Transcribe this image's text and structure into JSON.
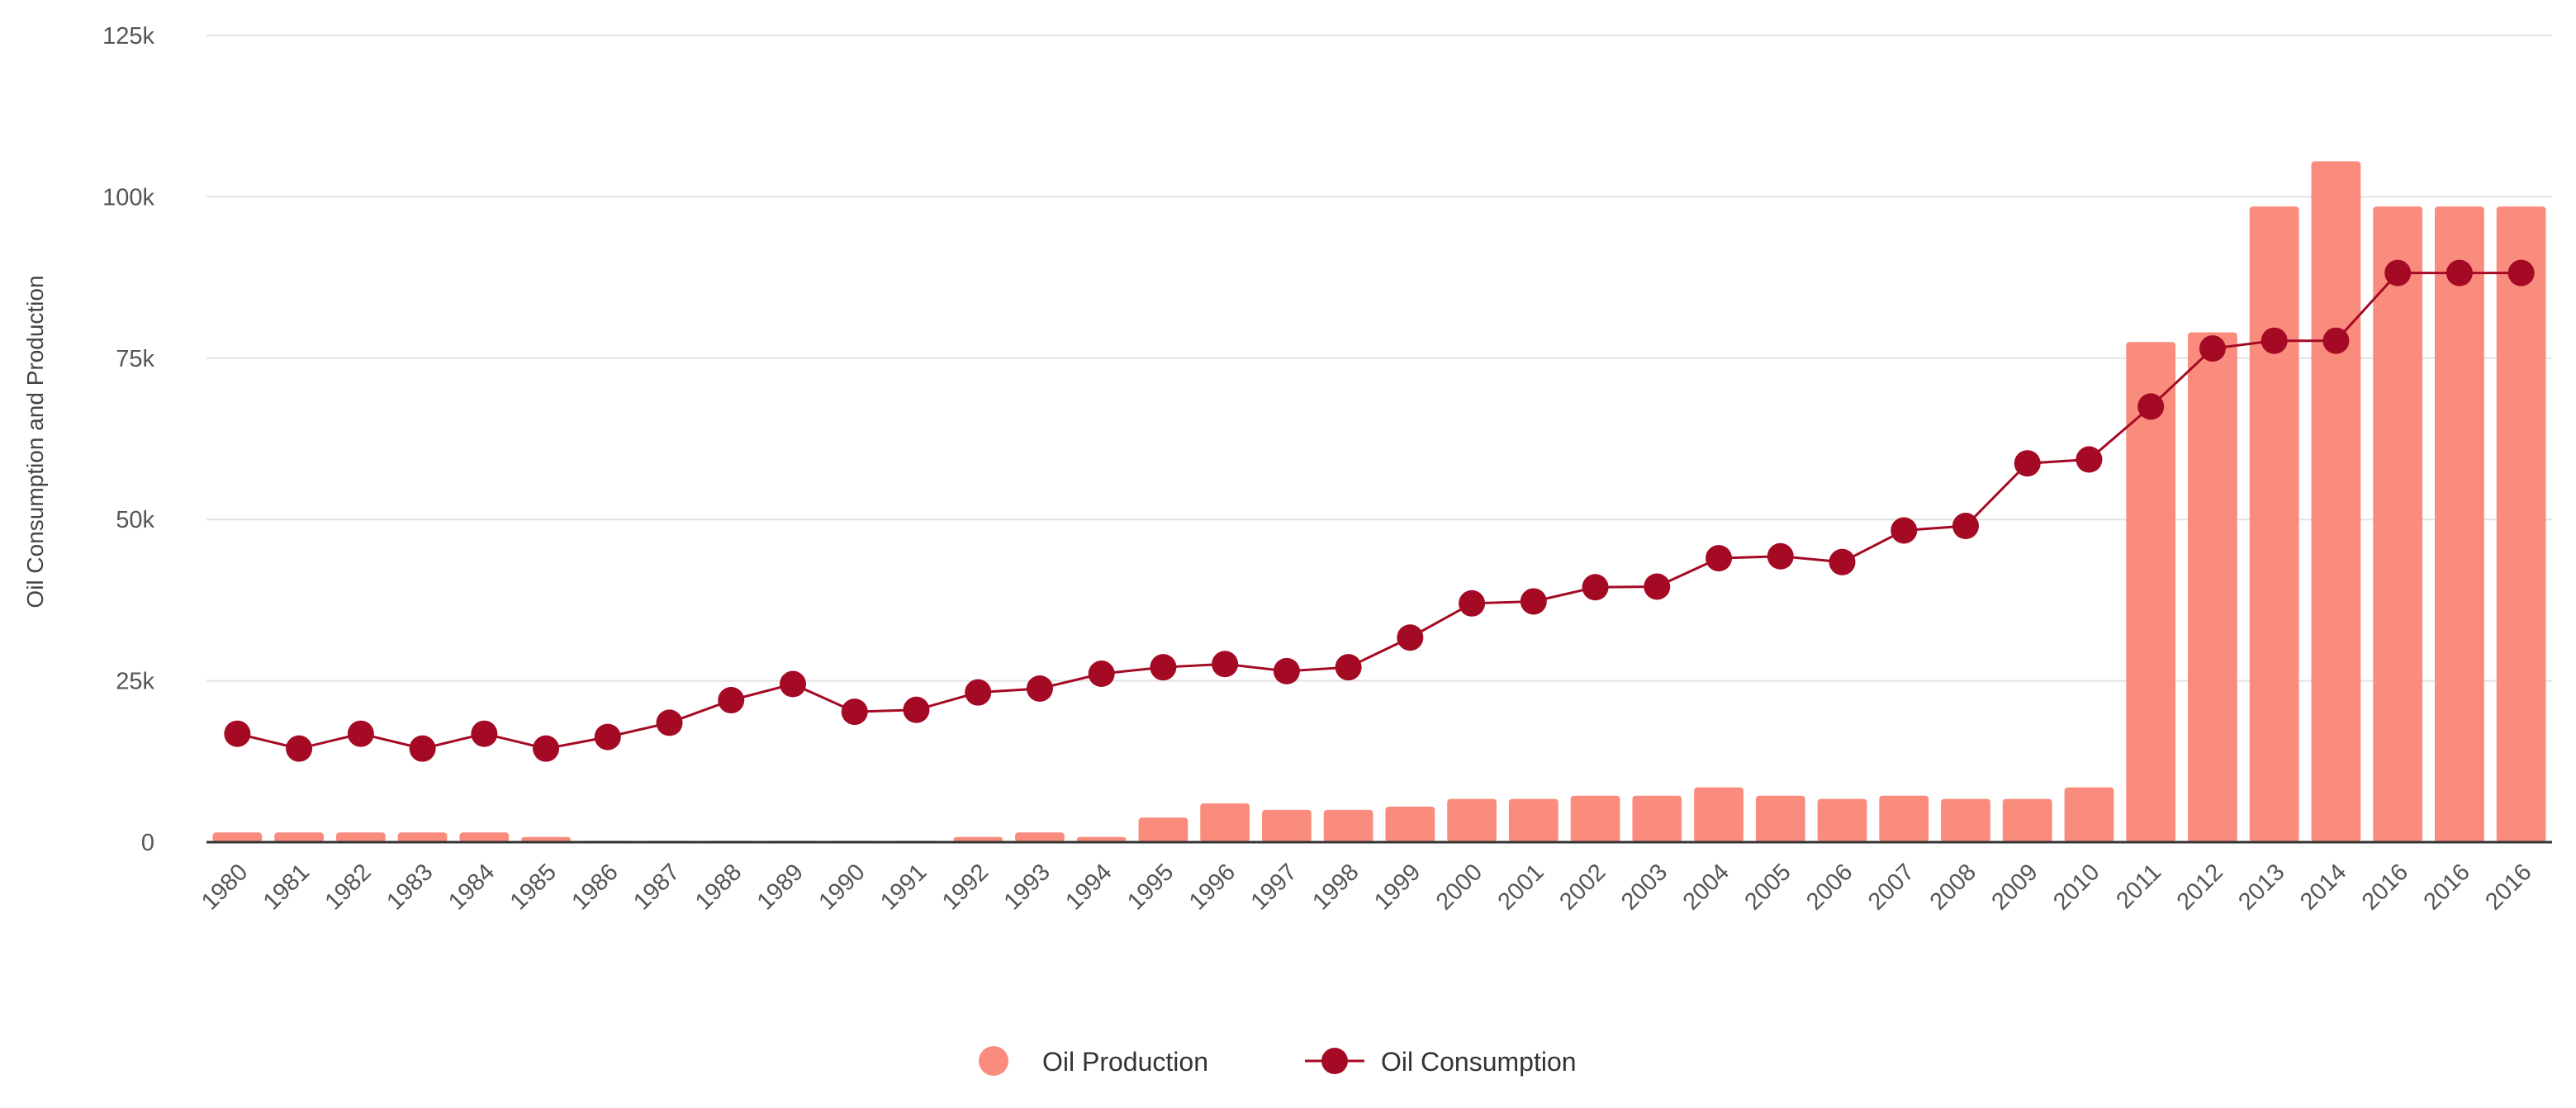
{
  "chart_data": {
    "type": "bar+line",
    "title": "",
    "xlabel": "",
    "ylabel": "Oil Consumption and Production",
    "ylim": [
      0,
      125000
    ],
    "yticks": [
      {
        "value": 0,
        "label": "0"
      },
      {
        "value": 25000,
        "label": "25k"
      },
      {
        "value": 50000,
        "label": "50k"
      },
      {
        "value": 75000,
        "label": "75k"
      },
      {
        "value": 100000,
        "label": "100k"
      },
      {
        "value": 125000,
        "label": "125k"
      }
    ],
    "grid": true,
    "legend_position": "bottom-center",
    "categories": [
      "1980",
      "1981",
      "1982",
      "1983",
      "1984",
      "1985",
      "1986",
      "1987",
      "1988",
      "1989",
      "1990",
      "1991",
      "1992",
      "1993",
      "1994",
      "1995",
      "1996",
      "1997",
      "1998",
      "1999",
      "2000",
      "2001",
      "2002",
      "2003",
      "2004",
      "2005",
      "2006",
      "2007",
      "2008",
      "2009",
      "2010",
      "2011",
      "2012",
      "2013",
      "2014",
      "2016",
      "2016",
      "2016"
    ],
    "series": [
      {
        "name": "Oil Production",
        "type": "bar",
        "color": "#fa8c7e",
        "values": [
          1500,
          1500,
          1500,
          1500,
          1500,
          800,
          200,
          200,
          200,
          200,
          200,
          200,
          800,
          1500,
          800,
          3800,
          6000,
          5000,
          5000,
          5500,
          6700,
          6700,
          7200,
          7200,
          8500,
          7200,
          6700,
          7200,
          6700,
          6700,
          8500,
          77500,
          79000,
          98500,
          105500,
          98500,
          98500,
          98500
        ]
      },
      {
        "name": "Oil Consumption",
        "type": "line",
        "color": "#a50a25",
        "values": [
          16800,
          14500,
          16800,
          14500,
          16800,
          14500,
          16300,
          18500,
          22000,
          24500,
          20200,
          20500,
          23200,
          23800,
          26100,
          27100,
          27600,
          26500,
          27100,
          31700,
          37000,
          37300,
          39500,
          39600,
          44000,
          44300,
          43400,
          48300,
          49000,
          58700,
          59300,
          67500,
          76500,
          77700,
          77700,
          88200,
          88200,
          88200
        ]
      }
    ]
  }
}
